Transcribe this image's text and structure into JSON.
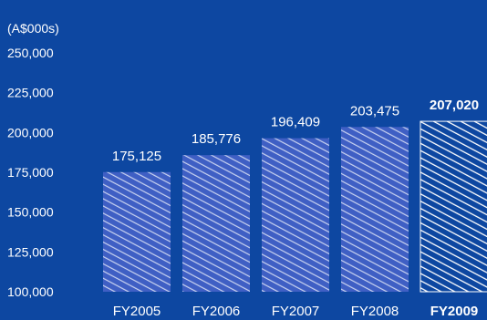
{
  "chart_data": {
    "type": "bar",
    "unit_label": "(A$000s)",
    "categories": [
      "FY2005",
      "FY2006",
      "FY2007",
      "FY2008",
      "FY2009"
    ],
    "values": [
      175125,
      185776,
      196409,
      203475,
      207020
    ],
    "value_labels": [
      "175,125",
      "185,776",
      "196,409",
      "203,475",
      "207,020"
    ],
    "highlight_index": 4,
    "ylim": [
      100000,
      250000
    ],
    "yticks": [
      100000,
      125000,
      150000,
      175000,
      200000,
      225000,
      250000
    ],
    "ytick_labels": [
      "100,000",
      "125,000",
      "150,000",
      "175,000",
      "200,000",
      "225,000",
      "250,000"
    ],
    "grid": false,
    "colors": {
      "background": "#0d47a1",
      "bar_fill": "#3f5fc4",
      "bar_stripe": "#c9d3f0",
      "highlight_fill": "#0d47a1",
      "highlight_stripe": "#ffffff",
      "text": "#ffffff"
    }
  }
}
